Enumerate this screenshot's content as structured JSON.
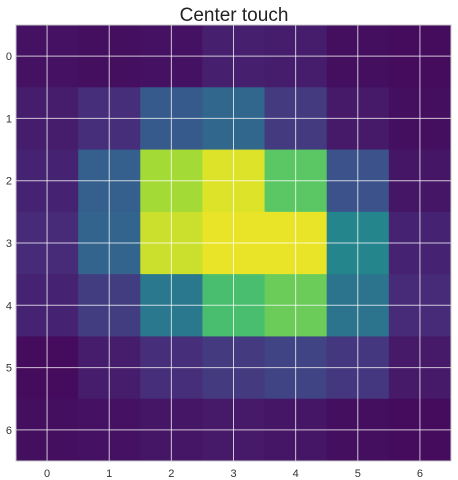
{
  "chart_data": {
    "type": "heatmap",
    "title": "Center touch",
    "xlabel": "",
    "ylabel": "",
    "x_ticks": [
      "0",
      "1",
      "2",
      "3",
      "4",
      "5",
      "6"
    ],
    "y_ticks": [
      "0",
      "1",
      "2",
      "3",
      "4",
      "5",
      "6"
    ],
    "grid": true,
    "colormap": "viridis",
    "value_range": [
      0,
      1
    ],
    "values": [
      [
        0.05,
        0.04,
        0.05,
        0.09,
        0.08,
        0.04,
        0.03
      ],
      [
        0.08,
        0.13,
        0.28,
        0.33,
        0.17,
        0.07,
        0.04
      ],
      [
        0.1,
        0.3,
        0.86,
        0.95,
        0.74,
        0.25,
        0.06
      ],
      [
        0.12,
        0.32,
        0.92,
        0.97,
        0.97,
        0.45,
        0.1
      ],
      [
        0.1,
        0.18,
        0.4,
        0.7,
        0.77,
        0.38,
        0.12
      ],
      [
        0.03,
        0.08,
        0.13,
        0.17,
        0.2,
        0.16,
        0.07
      ],
      [
        0.04,
        0.05,
        0.06,
        0.07,
        0.06,
        0.04,
        0.03
      ]
    ]
  },
  "colors": {
    "grid": "#ffffff",
    "frame": "#c8c8c8"
  }
}
